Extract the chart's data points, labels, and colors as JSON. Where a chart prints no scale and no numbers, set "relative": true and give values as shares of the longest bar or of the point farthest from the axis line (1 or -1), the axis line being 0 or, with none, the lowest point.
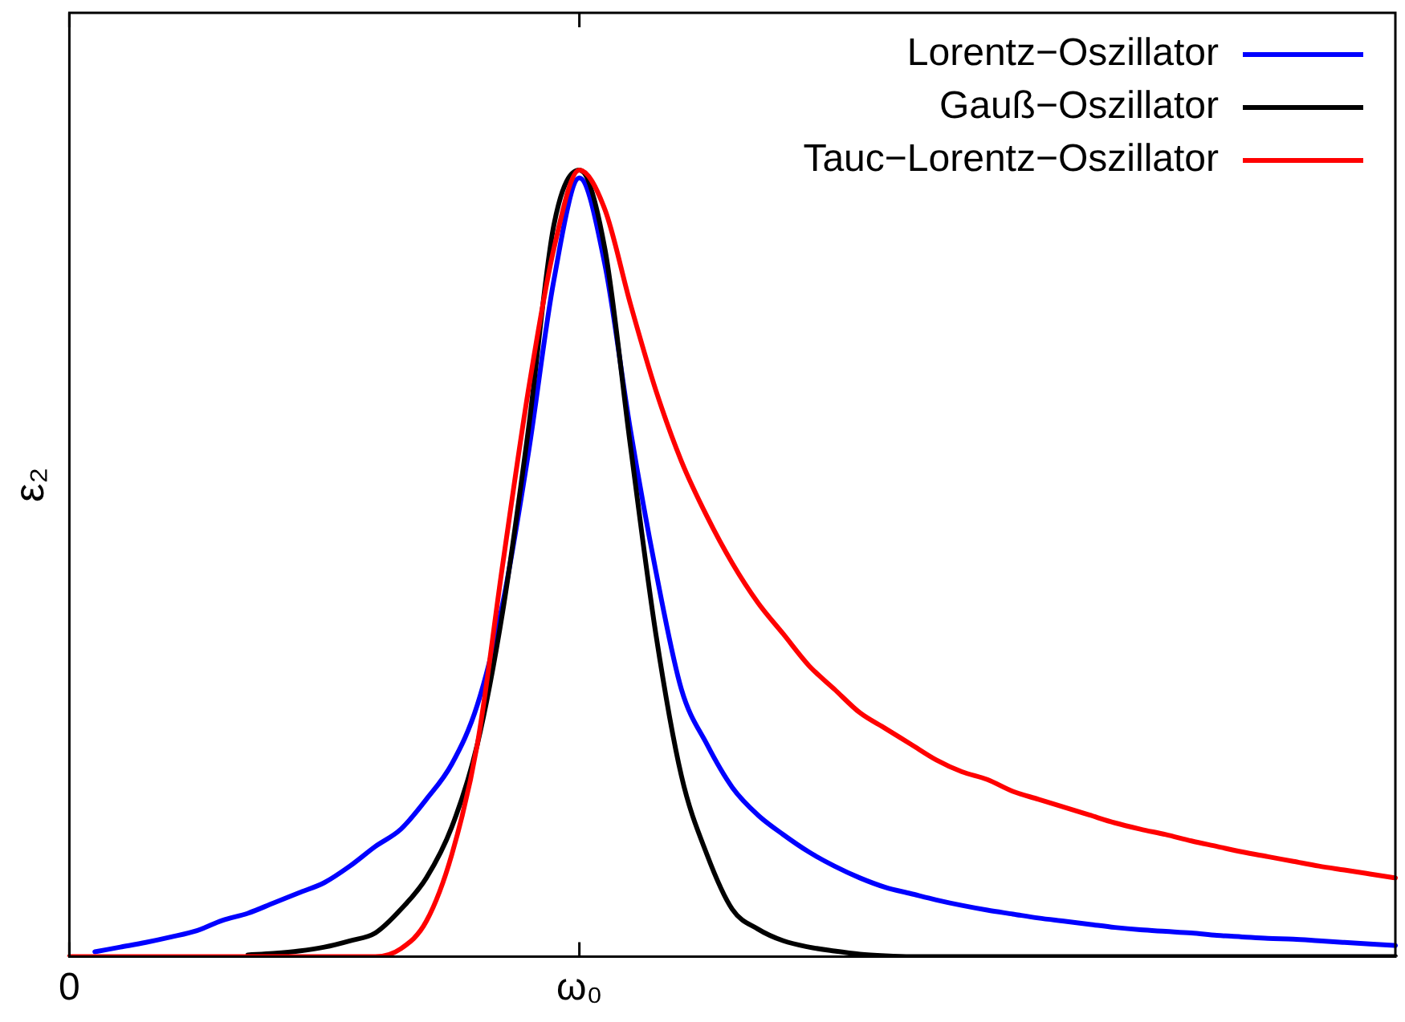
{
  "chart_data": {
    "type": "line",
    "ylabel": "ε₂",
    "relative": true,
    "legend": "top right",
    "grid": false,
    "marker": "none",
    "line_style": "solid",
    "categories": [
      "0",
      null,
      null,
      null,
      null,
      null,
      null,
      null,
      null,
      null,
      null,
      null,
      null,
      null,
      null,
      null,
      null,
      null,
      null,
      null,
      "ω₀",
      null,
      null,
      null,
      null,
      null,
      null,
      null,
      null,
      null,
      null,
      null,
      null,
      null,
      null,
      null,
      null,
      null,
      null,
      null,
      null,
      null,
      null,
      null,
      null,
      null,
      null,
      null,
      null,
      null,
      null,
      null,
      null
    ],
    "series": [
      {
        "name": "Lorentz−Oszillator",
        "color": "#0000ff",
        "values": [
          null,
          0.006,
          0.012,
          0.018,
          0.025,
          0.033,
          0.046,
          0.055,
          0.068,
          0.081,
          0.094,
          0.115,
          0.14,
          0.162,
          0.2,
          0.245,
          0.32,
          0.45,
          0.64,
          0.86,
          0.99,
          0.88,
          0.67,
          0.49,
          0.34,
          0.27,
          0.215,
          0.18,
          0.155,
          0.133,
          0.115,
          0.1,
          0.088,
          0.08,
          0.072,
          0.065,
          0.059,
          0.054,
          0.049,
          0.045,
          0.041,
          0.037,
          0.034,
          0.032,
          0.03,
          0.027,
          0.025,
          0.023,
          0.022,
          0.02,
          0.018,
          0.016,
          0.014
        ]
      },
      {
        "name": "Gauß−Oszillator",
        "color": "#000000",
        "values": [
          null,
          null,
          null,
          null,
          null,
          null,
          null,
          0.002,
          0.004,
          0.007,
          0.012,
          0.02,
          0.03,
          0.06,
          0.1,
          0.165,
          0.27,
          0.44,
          0.67,
          0.93,
          1,
          0.9,
          0.65,
          0.41,
          0.23,
          0.13,
          0.06,
          0.035,
          0.02,
          0.012,
          0.007,
          0.003,
          0.001,
          0,
          0,
          0,
          0,
          0,
          0,
          0,
          0,
          0,
          0,
          0,
          0,
          0,
          0,
          0,
          0,
          0,
          0,
          0,
          0
        ]
      },
      {
        "name": "Tauc−Lorentz−Oszillator",
        "color": "#ff0000",
        "values": [
          0,
          0,
          0,
          0,
          0,
          0,
          0,
          0,
          0,
          0,
          0,
          0,
          0,
          0.01,
          0.045,
          0.13,
          0.27,
          0.5,
          0.72,
          0.9,
          1,
          0.95,
          0.83,
          0.72,
          0.63,
          0.56,
          0.5,
          0.45,
          0.41,
          0.37,
          0.34,
          0.31,
          0.29,
          0.27,
          0.25,
          0.235,
          0.225,
          0.21,
          0.2,
          0.19,
          0.18,
          0.17,
          0.162,
          0.155,
          0.147,
          0.14,
          0.133,
          0.127,
          0.121,
          0.115,
          0.11,
          0.105,
          0.1
        ]
      }
    ]
  }
}
